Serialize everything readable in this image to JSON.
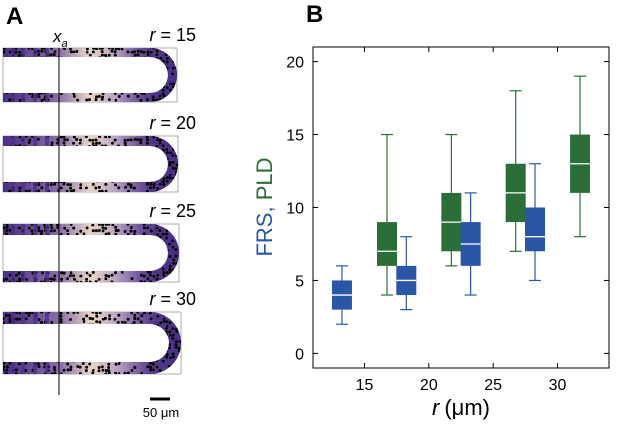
{
  "panel_a": {
    "label": "A",
    "xa_main": "x",
    "xa_sub": "a",
    "scale_bar": "50 μm",
    "channels": [
      {
        "r_label": "r = 15"
      },
      {
        "r_label": "r = 20"
      },
      {
        "r_label": "r = 25"
      },
      {
        "r_label": "r = 30"
      }
    ]
  },
  "panel_b": {
    "label": "B"
  },
  "colors": {
    "frs": "#2a56a6",
    "pld": "#2b6e3a",
    "cell_purple": "#4a2f86",
    "cell_light": "#e9d6c8"
  },
  "chart_data": {
    "type": "boxplot",
    "ylabel_parts": [
      {
        "text": "FRS",
        "color": "#2a56a6"
      },
      {
        "text": ", ",
        "color": "#2a56a6"
      },
      {
        "text": "PLD",
        "color": "#2b6e3a"
      }
    ],
    "xlabel_var": "r",
    "xlabel_unit": "(μm)",
    "x_ticks": [
      15,
      20,
      25,
      30
    ],
    "y_ticks": [
      0,
      5,
      10,
      15,
      20
    ],
    "xlim": [
      11,
      34
    ],
    "ylim": [
      -1,
      21
    ],
    "grid": false,
    "groups": [
      {
        "r": 15,
        "frs": {
          "min": 2,
          "q1": 3,
          "median": 4,
          "q3": 5,
          "max": 6
        },
        "pld": {
          "min": 4,
          "q1": 6,
          "median": 7,
          "q3": 9,
          "max": 15
        }
      },
      {
        "r": 20,
        "frs": {
          "min": 3,
          "q1": 4,
          "median": 5,
          "q3": 6,
          "max": 8
        },
        "pld": {
          "min": 6,
          "q1": 7,
          "median": 9,
          "q3": 11,
          "max": 15
        }
      },
      {
        "r": 25,
        "frs": {
          "min": 4,
          "q1": 6,
          "median": 7.5,
          "q3": 9,
          "max": 11
        },
        "pld": {
          "min": 7,
          "q1": 9,
          "median": 11,
          "q3": 13,
          "max": 18
        }
      },
      {
        "r": 30,
        "frs": {
          "min": 5,
          "q1": 7,
          "median": 8,
          "q3": 10,
          "max": 13
        },
        "pld": {
          "min": 8,
          "q1": 11,
          "median": 13,
          "q3": 15,
          "max": 19
        }
      }
    ]
  }
}
